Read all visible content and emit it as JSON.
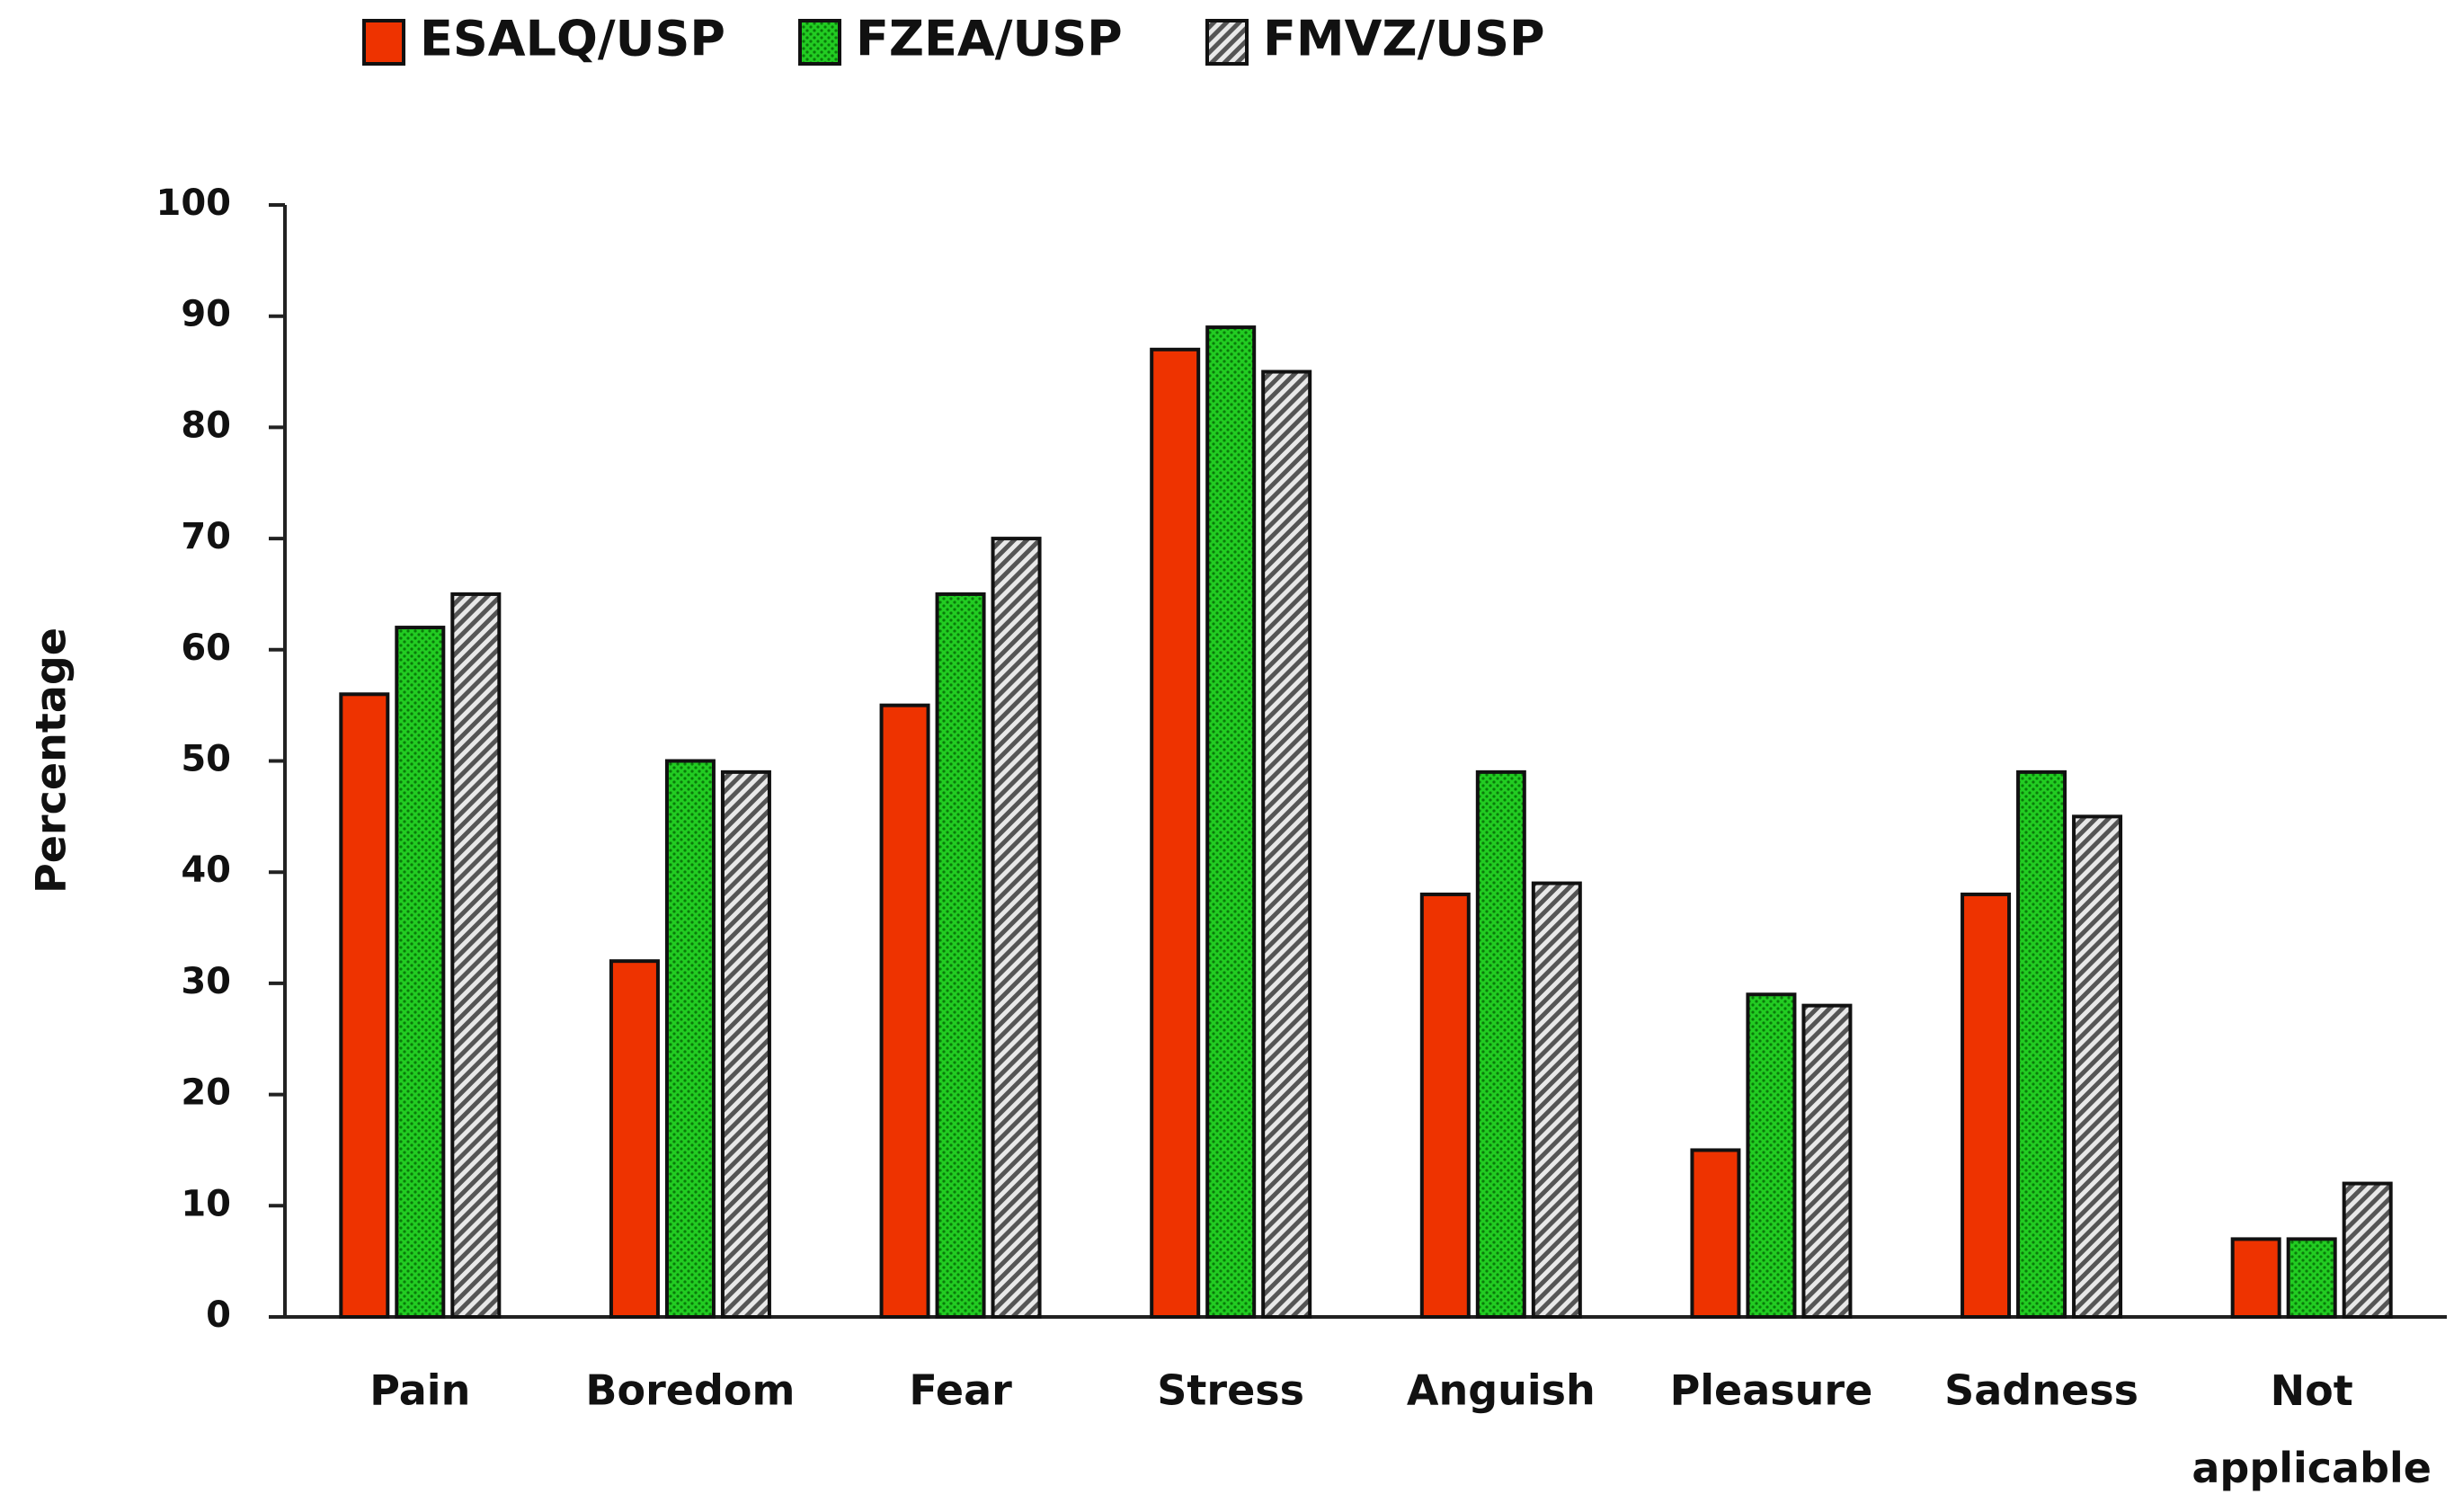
{
  "chart_data": {
    "type": "bar",
    "y_label": "Percentage",
    "categories": [
      "Pain",
      "Boredom",
      "Fear",
      "Stress",
      "Anguish",
      "Pleasure",
      "Sadness",
      "Not applicable"
    ],
    "series": [
      {
        "name": "ESALQ/USP",
        "color": "#ee3300",
        "pattern": "solid",
        "values": [
          56,
          32,
          55,
          87,
          38,
          15,
          38,
          7
        ]
      },
      {
        "name": "FZEA/USP",
        "color": "#22cc22",
        "pattern": "dots",
        "values": [
          62,
          50,
          65,
          89,
          49,
          29,
          49,
          7
        ]
      },
      {
        "name": "FMVZ/USP",
        "color": "#aaaaaa",
        "pattern": "hatch",
        "values": [
          65,
          49,
          70,
          85,
          39,
          28,
          45,
          12
        ]
      }
    ],
    "ylim": [
      0,
      100
    ],
    "yticks": [
      0,
      10,
      20,
      30,
      40,
      50,
      60,
      70,
      80,
      90,
      100
    ],
    "grid": false,
    "legend": "top"
  }
}
